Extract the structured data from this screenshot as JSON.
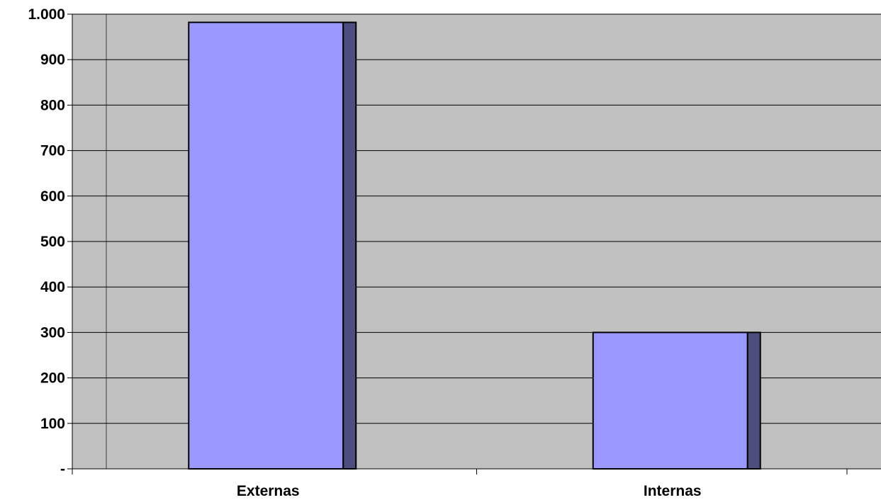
{
  "chart_data": {
    "type": "bar",
    "categories": [
      "Externas",
      "Internas"
    ],
    "values": [
      982,
      300
    ],
    "ylim": [
      0,
      1000
    ],
    "ytick_values": [
      0,
      100,
      200,
      300,
      400,
      500,
      600,
      700,
      800,
      900,
      1000
    ],
    "ytick_labels": [
      "-",
      "100",
      "200",
      "300",
      "400",
      "500",
      "600",
      "700",
      "800",
      "900",
      "1.000"
    ],
    "grid": true,
    "style": "3d-column",
    "colors": {
      "plot_background": "#c0c0c0",
      "bar_front": "#9999ff",
      "bar_side": "#4d4d80",
      "gridline": "#000000",
      "wall_edge": "#808080"
    }
  }
}
